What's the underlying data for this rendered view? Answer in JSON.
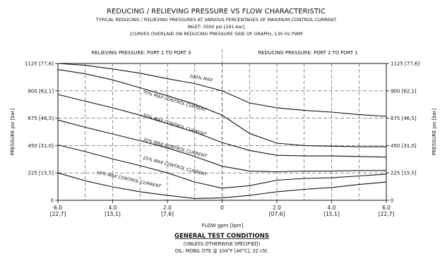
{
  "header": {
    "title": "REDUCING / RELIEVING PRESSURE VS FLOW CHARACTERISTIC",
    "line2": "TYPICAL REDUCING / RELIEVING PRESSURES AT VARIOUS PERCENTAGES OF MAXIMUM CONTROL CURRENT",
    "line3": "INLET: 3500 psi [241 bar]",
    "line4": "(CURVES OVERLAID ON REDUCING PRESSURE SIDE OF GRAPH), 130 Hz PWM"
  },
  "footer": {
    "heading": "GENERAL TEST CONDITIONS",
    "line1": "(UNLESS OTHERWISE SPECIFIED)",
    "line2": "OIL: MOBIL DTE @ 104°F [40°C], 32 cSt."
  },
  "chart_data": {
    "type": "line",
    "xlabel": "FLOW gpm [lpm]",
    "ylabel": "PRESSURE psi [bar]",
    "xlim": [
      -6,
      6
    ],
    "ylim": [
      0,
      1125
    ],
    "grid": true,
    "region_labels": {
      "left": "RELIEVING PRESSURE: PORT 1 TO PORT 3",
      "right": "REDUCING PRESSURE: PORT 2 TO PORT 1"
    },
    "x_ticks": [
      {
        "x": -6,
        "top": "6.0",
        "bottom": "[22,7]"
      },
      {
        "x": -4,
        "top": "4.0",
        "bottom": "[15,1]"
      },
      {
        "x": -2,
        "top": "2.0",
        "bottom": "[7,6]"
      },
      {
        "x": 0,
        "top": "0",
        "bottom": ""
      },
      {
        "x": 2,
        "top": "2.0",
        "bottom": "[07,6]"
      },
      {
        "x": 4,
        "top": "4.0",
        "bottom": "[15,1]"
      },
      {
        "x": 6,
        "top": "6.0",
        "bottom": "[22,7]"
      }
    ],
    "y_ticks": [
      {
        "y": 0,
        "label": "0"
      },
      {
        "y": 225,
        "label": "225 [15,5]"
      },
      {
        "y": 450,
        "label": "450 [31,0]"
      },
      {
        "y": 675,
        "label": "675 [46,5]"
      },
      {
        "y": 900,
        "label": "900 [62,1]"
      },
      {
        "y": 1125,
        "label": "1125 [77,6]"
      }
    ],
    "series": [
      {
        "name": "100% MAX",
        "label_at": [
          -1.2,
          1010
        ],
        "points": [
          [
            -6,
            1125
          ],
          [
            -5,
            1110
          ],
          [
            -4,
            1080
          ],
          [
            -3,
            1045
          ],
          [
            -2,
            1000
          ],
          [
            -1,
            960
          ],
          [
            0,
            900
          ],
          [
            1,
            800
          ],
          [
            2,
            760
          ],
          [
            3,
            740
          ],
          [
            4,
            725
          ],
          [
            5,
            705
          ],
          [
            6,
            690
          ]
        ]
      },
      {
        "name": "70% MAX CONTROL CURRENT",
        "label_at": [
          -2.9,
          880
        ],
        "points": [
          [
            -6,
            1075
          ],
          [
            -5,
            1040
          ],
          [
            -4,
            990
          ],
          [
            -3,
            925
          ],
          [
            -2,
            860
          ],
          [
            -1,
            790
          ],
          [
            0,
            700
          ],
          [
            1,
            550
          ],
          [
            2,
            470
          ],
          [
            3,
            450
          ],
          [
            4,
            445
          ],
          [
            5,
            440
          ],
          [
            6,
            440
          ]
        ]
      },
      {
        "name": "55% MAX CONTROL CURRENT",
        "label_at": [
          -2.9,
          690
        ],
        "points": [
          [
            -6,
            870
          ],
          [
            -5,
            815
          ],
          [
            -4,
            760
          ],
          [
            -3,
            700
          ],
          [
            -2,
            630
          ],
          [
            -1,
            560
          ],
          [
            0,
            475
          ],
          [
            1,
            410
          ],
          [
            2,
            370
          ],
          [
            3,
            365
          ],
          [
            4,
            365
          ],
          [
            5,
            360
          ],
          [
            6,
            355
          ]
        ]
      },
      {
        "name": "35% MAX CONTROL CURRENT",
        "label_at": [
          -2.9,
          490
        ],
        "points": [
          [
            -6,
            660
          ],
          [
            -5,
            600
          ],
          [
            -4,
            545
          ],
          [
            -3,
            490
          ],
          [
            -2,
            430
          ],
          [
            -1,
            360
          ],
          [
            0,
            280
          ],
          [
            1,
            240
          ],
          [
            2,
            235
          ],
          [
            3,
            240
          ],
          [
            4,
            240
          ],
          [
            5,
            245
          ],
          [
            6,
            245
          ]
        ]
      },
      {
        "name": "25% MAX CONTROL CURRENT",
        "label_at": [
          -2.9,
          340
        ],
        "points": [
          [
            -6,
            455
          ],
          [
            -5,
            400
          ],
          [
            -4,
            340
          ],
          [
            -3,
            285
          ],
          [
            -2,
            225
          ],
          [
            -1,
            150
          ],
          [
            0,
            100
          ],
          [
            1,
            120
          ],
          [
            2,
            165
          ],
          [
            3,
            180
          ],
          [
            4,
            185
          ],
          [
            5,
            200
          ],
          [
            6,
            215
          ]
        ]
      },
      {
        "name": "10% MAX CONTROL CURRENT",
        "label_at": [
          -4.6,
          220
        ],
        "points": [
          [
            -6,
            225
          ],
          [
            -5,
            160
          ],
          [
            -4,
            110
          ],
          [
            -3,
            70
          ],
          [
            -2,
            40
          ],
          [
            -1,
            15
          ],
          [
            0,
            20
          ],
          [
            1,
            40
          ],
          [
            2,
            70
          ],
          [
            3,
            90
          ],
          [
            4,
            105
          ],
          [
            5,
            130
          ],
          [
            6,
            150
          ]
        ]
      }
    ]
  }
}
